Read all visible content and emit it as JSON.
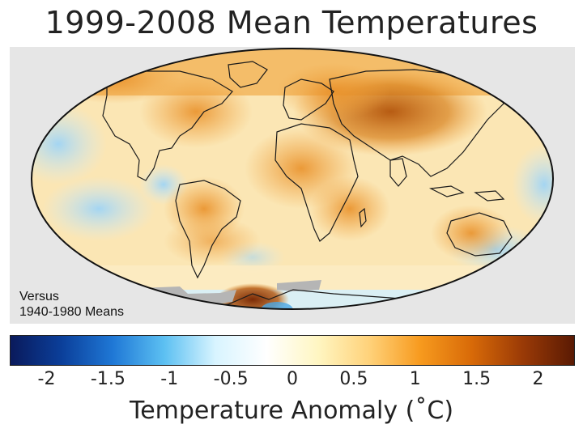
{
  "title": "1999-2008 Mean Temperatures",
  "note": {
    "line1": "Versus",
    "line2": "1940-1980 Means"
  },
  "colorbar": {
    "label": "Temperature Anomaly (˚C)",
    "range": [
      -2.3,
      2.3
    ],
    "ticks": [
      "-2",
      "-1.5",
      "-1",
      "-0.5",
      "0",
      "0.5",
      "1",
      "1.5",
      "2"
    ],
    "tick_values": [
      -2,
      -1.5,
      -1,
      -0.5,
      0,
      0.5,
      1,
      1.5,
      2
    ],
    "colors": [
      "#0a1a5c",
      "#0b3f9a",
      "#1f78d6",
      "#5cc0f2",
      "#d8f4ff",
      "#ffffff",
      "#fff6c2",
      "#ffd27a",
      "#f79a1e",
      "#d86a08",
      "#9a3a06",
      "#5a1a04"
    ]
  },
  "map": {
    "projection": "Mollweide",
    "ocean_base": "#fbe6b4",
    "land_warm": "#f0a340",
    "hot_spot": "#b3540a",
    "cool_spot": "#bfe3f8",
    "no_data": "#b5b5b5",
    "frame_bg": "#e6e6e6"
  }
}
